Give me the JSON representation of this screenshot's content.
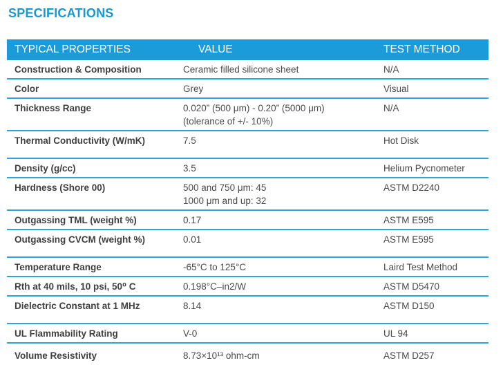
{
  "page": {
    "title": "SPECIFICATIONS"
  },
  "colors": {
    "accent": "#1B9CD9",
    "header_bg": "#1B9CD9",
    "header_text": "#FFFFFF",
    "row_border": "#2EA3DC",
    "title_text": "#1797D3",
    "property_text": "#3F3F3F",
    "value_text": "#4A4A4A"
  },
  "table": {
    "headers": [
      "TYPICAL PROPERTIES",
      "VALUE",
      "TEST METHOD"
    ],
    "rows": [
      {
        "property": "Construction & Composition",
        "value_lines": [
          "Ceramic filled silicone sheet"
        ],
        "method": "N/A"
      },
      {
        "property": "Color",
        "value_lines": [
          "Grey"
        ],
        "method": "Visual"
      },
      {
        "property": "Thickness Range",
        "value_lines": [
          "0.020” (500 μm) - 0.20” (5000 μm)",
          "(tolerance of +/- 10%)"
        ],
        "method": "N/A"
      },
      {
        "property": "Thermal Conductivity (W/mK)",
        "value_lines": [
          "7.5"
        ],
        "method": "Hot Disk",
        "group_break": true
      },
      {
        "property": "Density (g/cc)",
        "value_lines": [
          "3.5"
        ],
        "method": "Helium Pycnometer"
      },
      {
        "property": "Hardness (Shore 00)",
        "value_lines": [
          "500 and 750 μm: 45",
          "1000 μm and up: 32"
        ],
        "method": "ASTM D2240"
      },
      {
        "property": "Outgassing TML (weight %)",
        "value_lines": [
          "0.17"
        ],
        "method": "ASTM E595"
      },
      {
        "property": "Outgassing CVCM (weight %)",
        "value_lines": [
          "0.01"
        ],
        "method": "ASTM E595",
        "group_break": true
      },
      {
        "property": "Temperature Range",
        "value_lines": [
          "-65°C to 125°C"
        ],
        "method": "Laird Test Method"
      },
      {
        "property": "Rth at 40 mils, 10 psi, 50⁰ C",
        "value_lines": [
          "0.198°C–in2/W"
        ],
        "method": "ASTM D5470"
      },
      {
        "property": "Dielectric Constant at 1 MHz",
        "value_lines": [
          "8.14"
        ],
        "method": "ASTM D150",
        "group_break": true
      },
      {
        "property": "UL Flammability Rating",
        "value_lines": [
          "V-0"
        ],
        "method": "UL 94"
      },
      {
        "property": "Volume Resistivity",
        "value_lines": [
          "8.73×10¹³ ohm-cm"
        ],
        "method": "ASTM D257",
        "tall": true
      }
    ]
  }
}
